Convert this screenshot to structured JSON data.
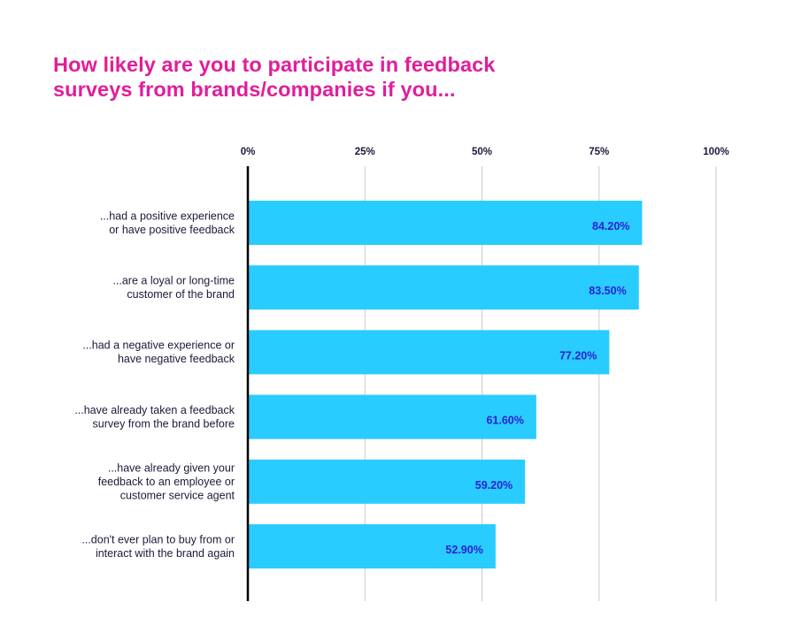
{
  "title": {
    "line1": "How likely are you to participate in feedback",
    "line2": "surveys from brands/companies if you..."
  },
  "colors": {
    "title": "#e01e9b",
    "bar": "#29ccfe",
    "data_label": "#2b1fd1",
    "axis": "#000000",
    "grid": "#c9c9c9",
    "text": "#1a1a3a"
  },
  "chart_data": {
    "type": "bar",
    "orientation": "horizontal",
    "title": "How likely are you to participate in feedback surveys from brands/companies if you...",
    "categories": [
      [
        "...had a positive experience",
        "or have positive feedback"
      ],
      [
        "...are a loyal or long-time",
        "customer of the brand"
      ],
      [
        "...had a negative experience or",
        "have negative feedback"
      ],
      [
        "...have already taken a feedback",
        "survey from the brand before"
      ],
      [
        "...have already given your",
        "feedback to an  employee or",
        "customer service agent"
      ],
      [
        "...don't ever plan to buy from or",
        "interact with the brand again"
      ]
    ],
    "values": [
      84.2,
      83.5,
      77.2,
      61.6,
      59.2,
      52.9
    ],
    "value_labels": [
      "84.20%",
      "83.50%",
      "77.20%",
      "61.60%",
      "59.20%",
      "52.90%"
    ],
    "xlim": [
      0,
      100
    ],
    "xticks": [
      0,
      25,
      50,
      75,
      100
    ],
    "xtick_labels": [
      "0%",
      "25%",
      "50%",
      "75%",
      "100%"
    ],
    "xaxis_position": "top",
    "grid": true,
    "legend": "none"
  }
}
